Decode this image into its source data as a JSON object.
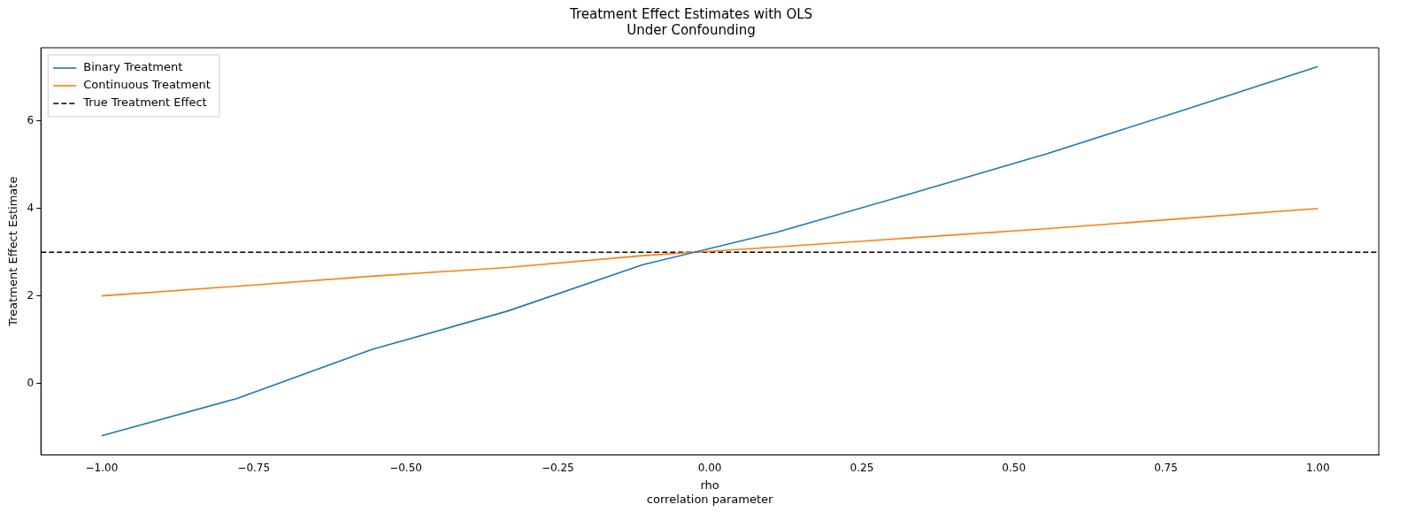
{
  "chart_data": {
    "type": "line",
    "title": "Treatment Effect Estimates with OLS\nUnder Confounding",
    "xlabel": "rho\ncorrelation parameter",
    "ylabel": "Treatment Effect Estimate",
    "x": [
      -1,
      -0.778,
      -0.556,
      -0.333,
      -0.111,
      0.111,
      0.333,
      0.556,
      0.778,
      1
    ],
    "series": [
      {
        "name": "Binary Treatment",
        "color": "#1f77b4",
        "values": [
          -1.2,
          -0.35,
          0.77,
          1.65,
          2.71,
          3.46,
          4.35,
          5.26,
          6.25,
          7.25
        ]
      },
      {
        "name": "Continuous Treatment",
        "color": "#ff7f0e",
        "values": [
          2.0,
          2.22,
          2.45,
          2.65,
          2.92,
          3.12,
          3.33,
          3.54,
          3.77,
          4.0
        ]
      }
    ],
    "ref_lines": [
      {
        "axis": "y",
        "value": 3,
        "label": "True Treatment Effect",
        "color": "#000000",
        "line_style": "dashed"
      }
    ],
    "xlim": [
      -1.1,
      1.1
    ],
    "ylim": [
      -1.64,
      7.68
    ],
    "xticks": [
      {
        "value": -1,
        "label": "−1.00"
      },
      {
        "value": -0.75,
        "label": "−0.75"
      },
      {
        "value": -0.5,
        "label": "−0.50"
      },
      {
        "value": -0.25,
        "label": "−0.25"
      },
      {
        "value": 0,
        "label": "0.00"
      },
      {
        "value": 0.25,
        "label": "0.25"
      },
      {
        "value": 0.5,
        "label": "0.50"
      },
      {
        "value": 0.75,
        "label": "0.75"
      },
      {
        "value": 1,
        "label": "1.00"
      }
    ],
    "yticks": [
      0,
      2,
      4,
      6
    ],
    "grid": false,
    "legend": "top left",
    "marker": "none",
    "line_style": "solid"
  }
}
